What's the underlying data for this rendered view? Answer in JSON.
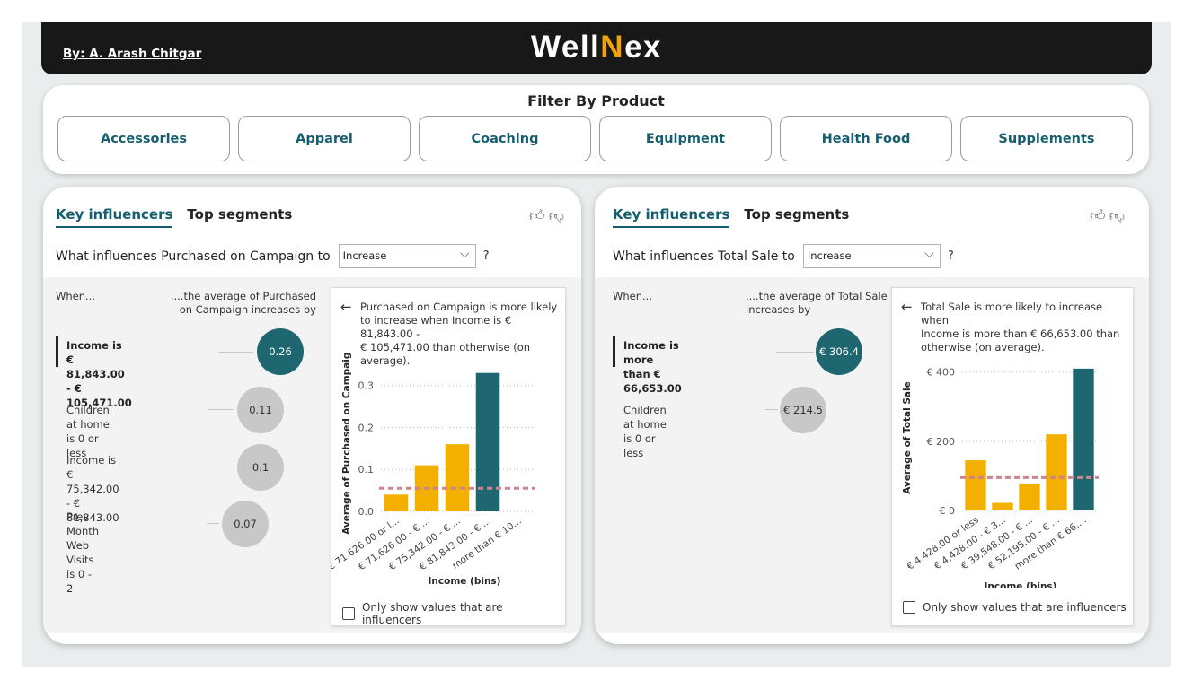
{
  "header": {
    "author": "By: A. Arash Chitgar",
    "logo_part1": "Well",
    "logo_accent": "N",
    "logo_part2": "ex"
  },
  "filter": {
    "title": "Filter By Product",
    "buttons": [
      "Accessories",
      "Apparel",
      "Coaching",
      "Equipment",
      "Health Food",
      "Supplements"
    ]
  },
  "colors": {
    "teal": "#1f6770",
    "orange": "#f4b000",
    "accent": "#f0a30a",
    "dashed_avg": "#d0838e",
    "bubble_gray": "#c8c8c8"
  },
  "icons": {
    "thumb_up": "thumbs-up-icon",
    "thumb_down": "thumbs-down-icon",
    "back": "back-arrow-icon",
    "chevron": "chevron-down-icon"
  },
  "left": {
    "tab1": "Key influencers",
    "tab2": "Top segments",
    "question": "What influences Purchased on Campaign to",
    "dropdown": "Increase",
    "qmark": "?",
    "when": "When...",
    "avg_header_1": "....the average of Purchased",
    "avg_header_2": "on Campaign increases by",
    "influencers": [
      {
        "l1": "Income is € 81,843.00 - €",
        "l2": "105,471.00",
        "value": "0.26"
      },
      {
        "l1": "Children at home is 0 or less",
        "l2": "",
        "value": "0.11"
      },
      {
        "l1": "Income is € 75,342.00 - €",
        "l2": "81,843.00",
        "value": "0.1"
      },
      {
        "l1": "Prev Month Web Visits is 0 -",
        "l2": "2",
        "value": "0.07"
      }
    ],
    "card": {
      "back": "←",
      "desc1": "Purchased on Campaign is more likely",
      "desc2": "to increase when Income is € 81,843.00 -",
      "desc3": "€ 105,471.00 than otherwise (on",
      "desc4": "average).",
      "checkbox": "Only show values that are influencers"
    }
  },
  "right": {
    "tab1": "Key influencers",
    "tab2": "Top segments",
    "question": "What influences Total Sale to",
    "dropdown": "Increase",
    "qmark": "?",
    "when": "When...",
    "avg_header_1": "....the average of Total Sale",
    "avg_header_2": "increases by",
    "influencers": [
      {
        "l1": "Income is more than €",
        "l2": "66,653.00",
        "value": "€ 306.4"
      },
      {
        "l1": "Children at home is 0 or less",
        "l2": "",
        "value": "€ 214.5"
      }
    ],
    "card": {
      "back": "←",
      "desc1": "Total Sale is more likely to increase when",
      "desc2": "Income is more than € 66,653.00 than",
      "desc3": "otherwise (on average).",
      "checkbox": "Only show values that are influencers"
    }
  },
  "chart_data": [
    {
      "type": "bar",
      "categories": [
        "€ 71,626.00 or l...",
        "€ 71,626.00 - € ...",
        "€ 75,342.00 - € ...",
        "€ 81,843.00 - € ...",
        "more than € 10..."
      ],
      "values": [
        0.04,
        0.11,
        0.16,
        0.33,
        null
      ],
      "highlight_index": 3,
      "average_line": 0.055,
      "xlabel": "Income (bins)",
      "ylabel": "Average of Purchased on Campaign",
      "yticks": [
        "0.0",
        "0.1",
        "0.2",
        "0.3"
      ],
      "ytick_values": [
        0,
        0.1,
        0.2,
        0.3
      ],
      "ylim": [
        0,
        0.34
      ],
      "grid": true
    },
    {
      "type": "bar",
      "categories": [
        "€ 4,428.00 or less",
        "€ 4,428.00 - € 3...",
        "€ 39,548.00 - € ...",
        "€ 52,195.00 - € ...",
        "more than € 66,..."
      ],
      "values": [
        145,
        22,
        78,
        220,
        410
      ],
      "highlight_index": 4,
      "average_line": 95,
      "xlabel": "Income (bins)",
      "ylabel": "Average of Total Sale",
      "yticks": [
        "€ 0",
        "€ 200",
        "€ 400"
      ],
      "ytick_values": [
        0,
        200,
        400
      ],
      "ylim": [
        0,
        420
      ],
      "grid": true
    }
  ]
}
